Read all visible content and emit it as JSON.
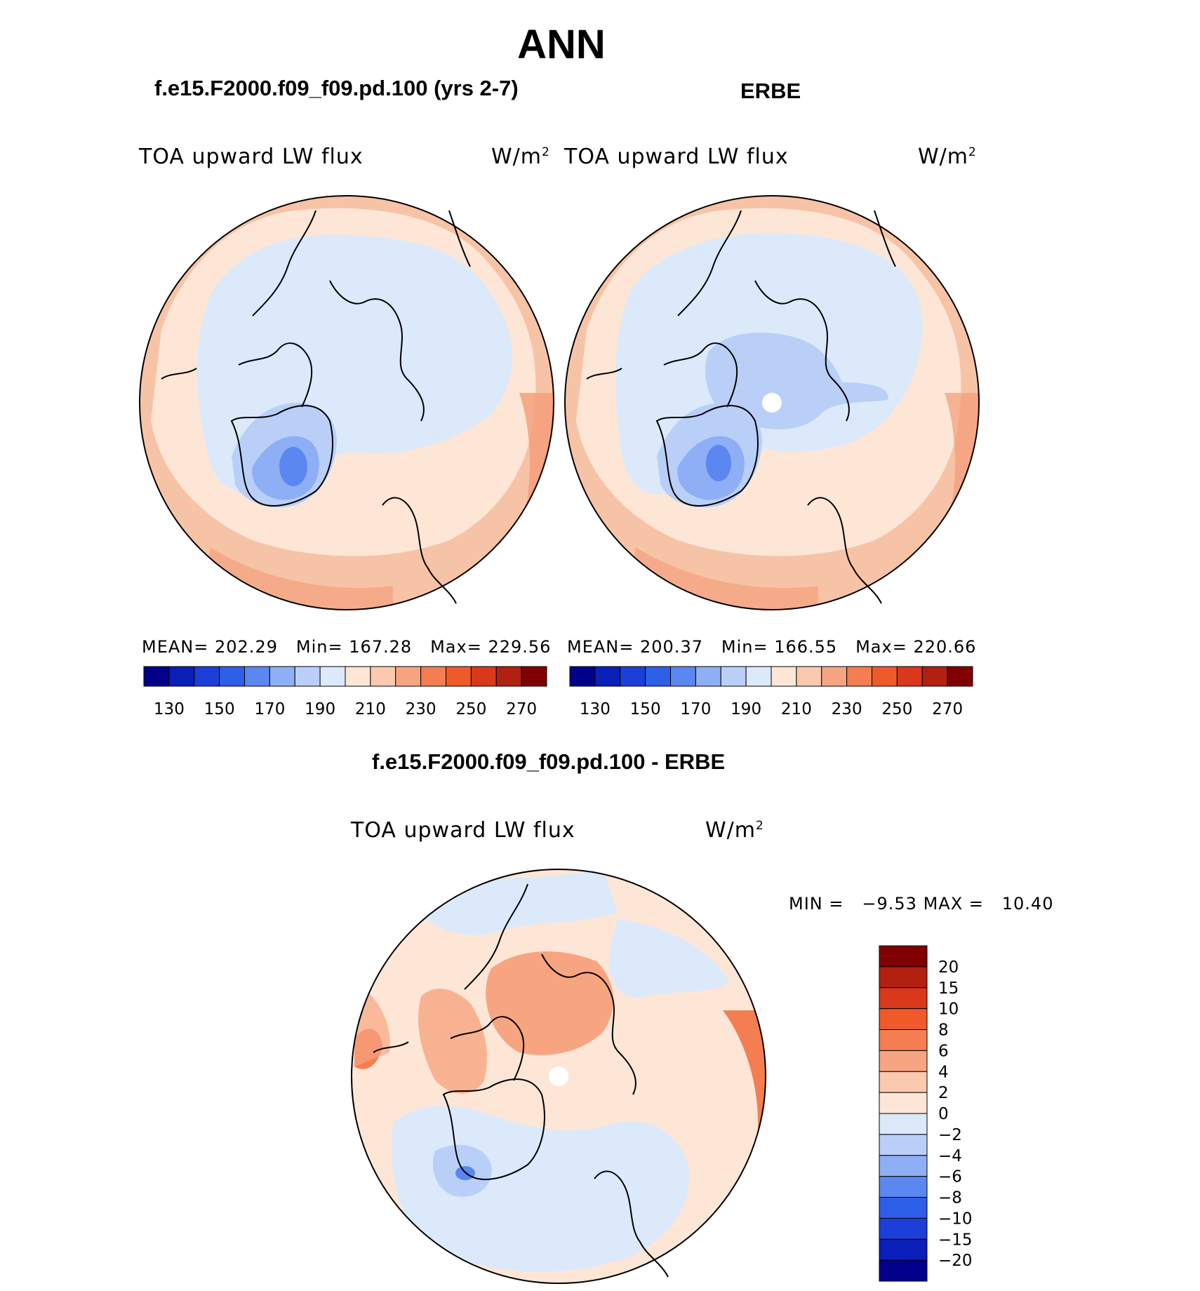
{
  "title": "ANN",
  "panels": [
    {
      "subtitle": "f.e15.F2000.f09_f09.pd.100 (yrs 2-7)",
      "variable": "TOA upward LW flux",
      "units": "W/m",
      "units_sup": "2",
      "stats": {
        "mean_label": "MEAN=",
        "mean": "202.29",
        "min_label": "Min=",
        "min": "167.28",
        "max_label": "Max=",
        "max": "229.56"
      }
    },
    {
      "subtitle": "ERBE",
      "variable": "TOA upward LW flux",
      "units": "W/m",
      "units_sup": "2",
      "stats": {
        "mean_label": "MEAN=",
        "mean": "200.37",
        "min_label": "Min=",
        "min": "166.55",
        "max_label": "Max=",
        "max": "220.66"
      }
    }
  ],
  "colorbar_top": {
    "ticks": [
      "130",
      "150",
      "170",
      "190",
      "210",
      "230",
      "250",
      "270"
    ],
    "colors": [
      "#00008b",
      "#0a1fb8",
      "#1c3fd9",
      "#2e5fe8",
      "#5a87f0",
      "#8eaef5",
      "#b9cff8",
      "#dbe9fb",
      "#fde6d6",
      "#fbc9ad",
      "#f7a580",
      "#f47e52",
      "#ef5a2b",
      "#d9381a",
      "#b2200f",
      "#800000"
    ]
  },
  "difference": {
    "title": "f.e15.F2000.f09_f09.pd.100 - ERBE",
    "variable": "TOA upward LW flux",
    "units": "W/m",
    "units_sup": "2",
    "minmax": {
      "min_label": "MIN =",
      "min": "−9.53",
      "max_label": "MAX =",
      "max": "10.40"
    },
    "colorbar": {
      "labels": [
        "20",
        "15",
        "10",
        "8",
        "6",
        "4",
        "2",
        "0",
        "−2",
        "−4",
        "−6",
        "−8",
        "−10",
        "−15",
        "−20"
      ],
      "colors": [
        "#800000",
        "#b2200f",
        "#d9381a",
        "#ef5a2b",
        "#f47e52",
        "#f7a580",
        "#fbc9ad",
        "#fde6d6",
        "#dbe9fb",
        "#b9cff8",
        "#8eaef5",
        "#5a87f0",
        "#2e5fe8",
        "#1c3fd9",
        "#0a1fb8",
        "#00008b"
      ]
    }
  },
  "palette": {
    "ocean_warm": "#f7c3a6",
    "ocean_mid": "#fde6d6",
    "arctic": "#dbe9fb",
    "arctic_mid": "#b9cff8",
    "greenland_low": "#8eaef5",
    "greenland_core": "#5a87f0",
    "deep_warm": "#f49b77",
    "coast": "#000000"
  }
}
